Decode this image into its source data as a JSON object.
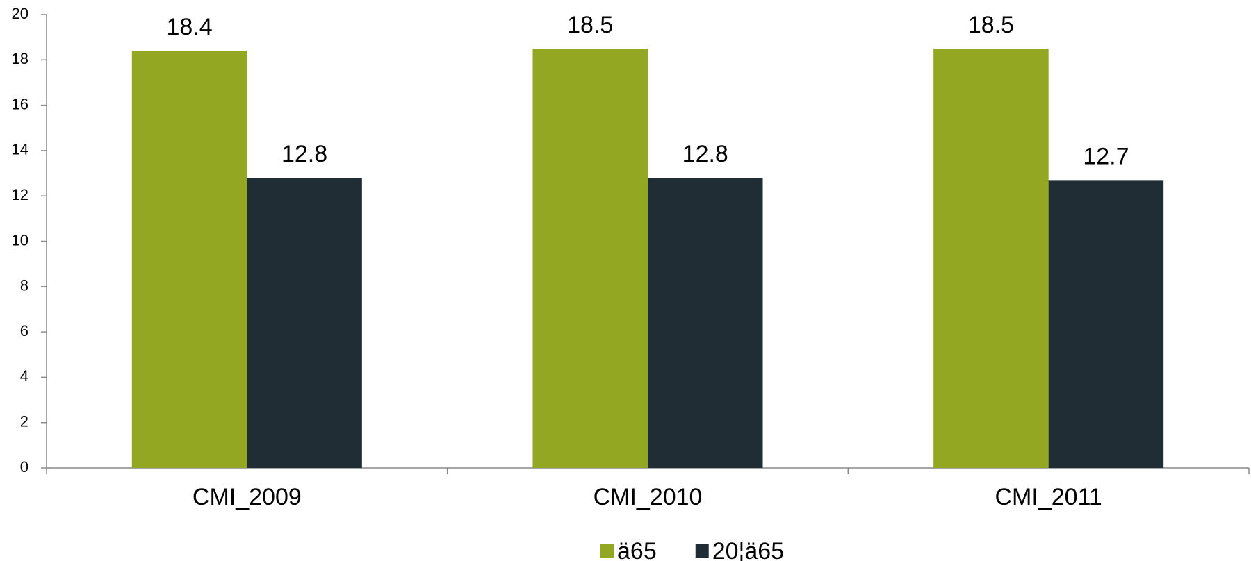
{
  "chart_data": {
    "type": "bar",
    "categories": [
      "CMI_2009",
      "CMI_2010",
      "CMI_2011"
    ],
    "series": [
      {
        "name": "ä65",
        "color": "#94a723",
        "values": [
          18.4,
          18.5,
          18.5
        ]
      },
      {
        "name": "20¦ä65",
        "color": "#212d35",
        "values": [
          12.8,
          12.8,
          12.7
        ]
      }
    ],
    "ylim": [
      0,
      20
    ],
    "yticks": [
      0,
      2,
      4,
      6,
      8,
      10,
      12,
      14,
      16,
      18,
      20
    ],
    "grid": false
  }
}
